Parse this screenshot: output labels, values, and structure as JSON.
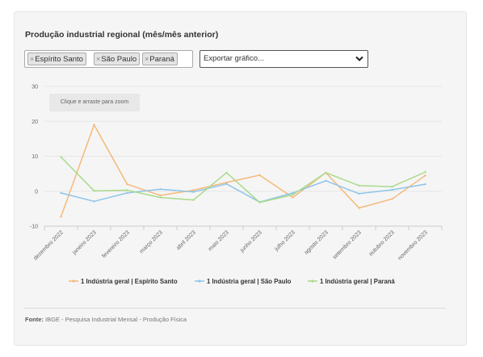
{
  "title": "Produção industrial regional (mês/mês anterior)",
  "filters": {
    "chips": [
      "Espírito Santo",
      "São Paulo",
      "Paraná"
    ],
    "remove_glyph": "×",
    "export_label": "Exportar gráfico..."
  },
  "zoom_hint": "Clique e arraste para zoom",
  "source": {
    "label": "Fonte:",
    "text": "IBGE - Pesquisa Industrial Mensal - Produção Física"
  },
  "chart_data": {
    "type": "line",
    "categories": [
      "dezembro 2022",
      "janeiro 2023",
      "fevereiro 2023",
      "março 2023",
      "abril 2023",
      "maio 2023",
      "junho 2023",
      "julho 2023",
      "agosto 2023",
      "setembro 2023",
      "outubro 2023",
      "novembro 2023"
    ],
    "ylim": [
      -10,
      30
    ],
    "yticks": [
      -10,
      0,
      10,
      20,
      30
    ],
    "grid": true,
    "legend_position": "bottom",
    "series": [
      {
        "name": "1 Indústria geral | Espírito Santo",
        "color": "#f5b97a",
        "values": [
          -7.3,
          19.0,
          2.0,
          -1.2,
          0.3,
          2.5,
          4.6,
          -1.8,
          5.3,
          -4.8,
          -2.2,
          4.5
        ]
      },
      {
        "name": "1 Indústria geral | São Paulo",
        "color": "#8ec5ea",
        "values": [
          -0.5,
          -2.9,
          -0.5,
          0.6,
          -0.2,
          2.1,
          -3.1,
          -0.5,
          3.0,
          -0.7,
          0.4,
          2.0
        ]
      },
      {
        "name": "1 Indústria geral | Paraná",
        "color": "#a9db8b",
        "values": [
          9.8,
          0.1,
          0.3,
          -1.8,
          -2.5,
          5.3,
          -3.2,
          -1.0,
          5.3,
          1.6,
          1.3,
          5.5
        ]
      }
    ]
  }
}
